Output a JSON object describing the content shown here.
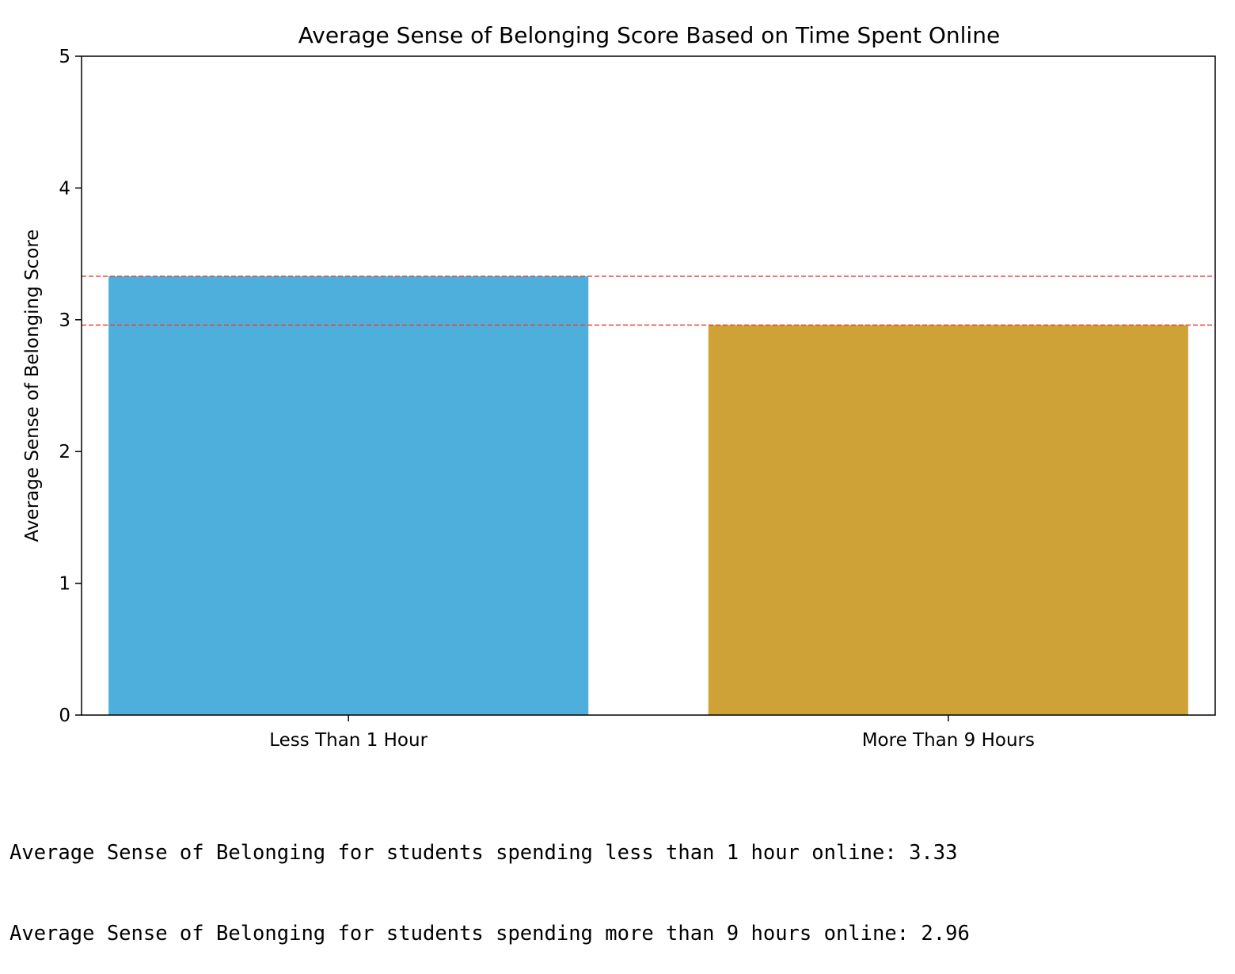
{
  "chart_data": {
    "type": "bar",
    "title": "Average Sense of Belonging Score Based on Time Spent Online",
    "xlabel": "",
    "ylabel": "Average Sense of Belonging Score",
    "categories": [
      "Less Than 1 Hour",
      "More Than 9 Hours"
    ],
    "values": [
      3.33,
      2.96
    ],
    "colors": [
      "#4fafdc",
      "#cfa237"
    ],
    "ylim": [
      0,
      5
    ],
    "yticks": [
      "0",
      "1",
      "2",
      "3",
      "4",
      "5"
    ],
    "reference_lines": [
      {
        "y": 3.33,
        "color": "#e8413c",
        "style": "dashed"
      },
      {
        "y": 2.96,
        "color": "#e8413c",
        "style": "dashed"
      }
    ],
    "grid": false,
    "legend": "none"
  },
  "output": {
    "lines": [
      "Average Sense of Belonging for students spending less than 1 hour online: 3.33",
      "Average Sense of Belonging for students spending more than 9 hours online: 2.96"
    ]
  }
}
